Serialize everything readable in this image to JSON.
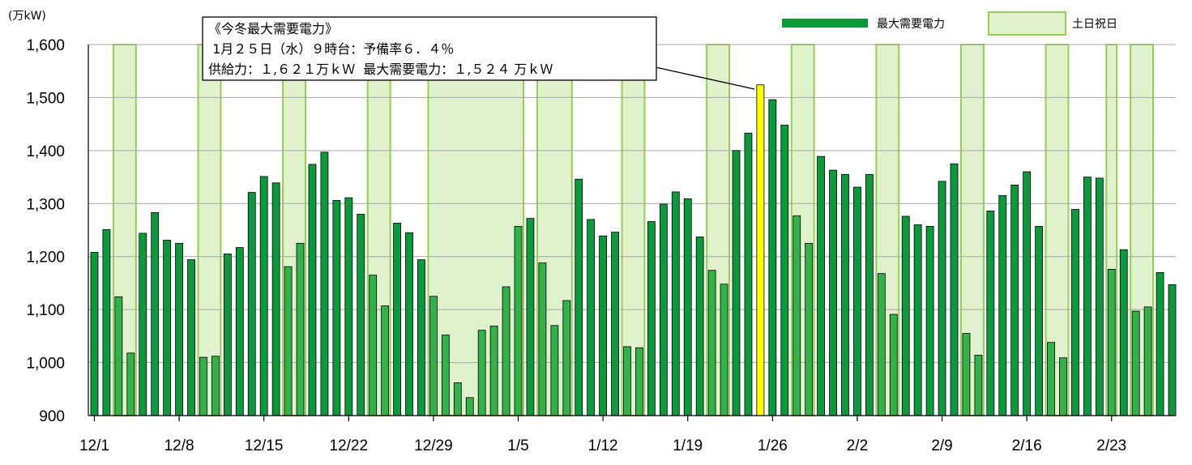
{
  "chart_data": {
    "type": "bar",
    "ylabel": "(万kW)",
    "ylim": [
      900,
      1600
    ],
    "ytick_step": 100,
    "yticks": [
      "900",
      "1,000",
      "1,100",
      "1,200",
      "1,300",
      "1,400",
      "1,500",
      "1,600"
    ],
    "grid": true,
    "legend_position": "top-right",
    "start_date": "12/1",
    "xtick_labels": [
      "12/1",
      "12/8",
      "12/15",
      "12/22",
      "12/29",
      "1/5",
      "1/12",
      "1/19",
      "1/26",
      "2/2",
      "2/9",
      "2/16",
      "2/23"
    ],
    "series": [
      {
        "name": "最大需要電力",
        "color": "#0a9a3c",
        "values": [
          1208,
          1251,
          1124,
          1018,
          1244,
          1283,
          1231,
          1225,
          1194,
          1010,
          1012,
          1205,
          1217,
          1321,
          1351,
          1339,
          1181,
          1225,
          1374,
          1397,
          1306,
          1311,
          1280,
          1165,
          1107,
          1263,
          1245,
          1194,
          1125,
          1052,
          962,
          934,
          1061,
          1069,
          1143,
          1257,
          1272,
          1188,
          1070,
          1117,
          1346,
          1270,
          1239,
          1246,
          1030,
          1028,
          1266,
          1299,
          1322,
          1309,
          1237,
          1174,
          1148,
          1400,
          1433,
          1524,
          1496,
          1448,
          1277,
          1225,
          1389,
          1363,
          1355,
          1331,
          1355,
          1168,
          1091,
          1276,
          1260,
          1257,
          1342,
          1375,
          1055,
          1014,
          1286,
          1315,
          1335,
          1360,
          1257,
          1038,
          1009,
          1289,
          1350,
          1348,
          1176,
          1213,
          1097,
          1105,
          1170,
          1147
        ]
      },
      {
        "name": "土日祝日",
        "color": "#dff2cc",
        "border": "#92d050",
        "spans": [
          [
            2,
            3
          ],
          [
            9,
            10
          ],
          [
            16,
            17
          ],
          [
            23,
            24
          ],
          [
            28,
            35
          ],
          [
            37,
            39
          ],
          [
            44,
            45
          ],
          [
            51,
            52
          ],
          [
            58,
            59
          ],
          [
            65,
            66
          ],
          [
            72,
            73
          ],
          [
            79,
            80
          ],
          [
            84,
            84
          ],
          [
            86,
            87
          ]
        ]
      }
    ],
    "peak_index": 55,
    "peak_color": "#ffff00",
    "annotation": {
      "lines": [
        "《今冬最大需要電力》",
        " 1月２５日（水）９時台：予備率６．４％",
        "供給力：１,６２１万ｋＷ  最大需要電力：１,５２４ 万ｋＷ"
      ]
    }
  }
}
